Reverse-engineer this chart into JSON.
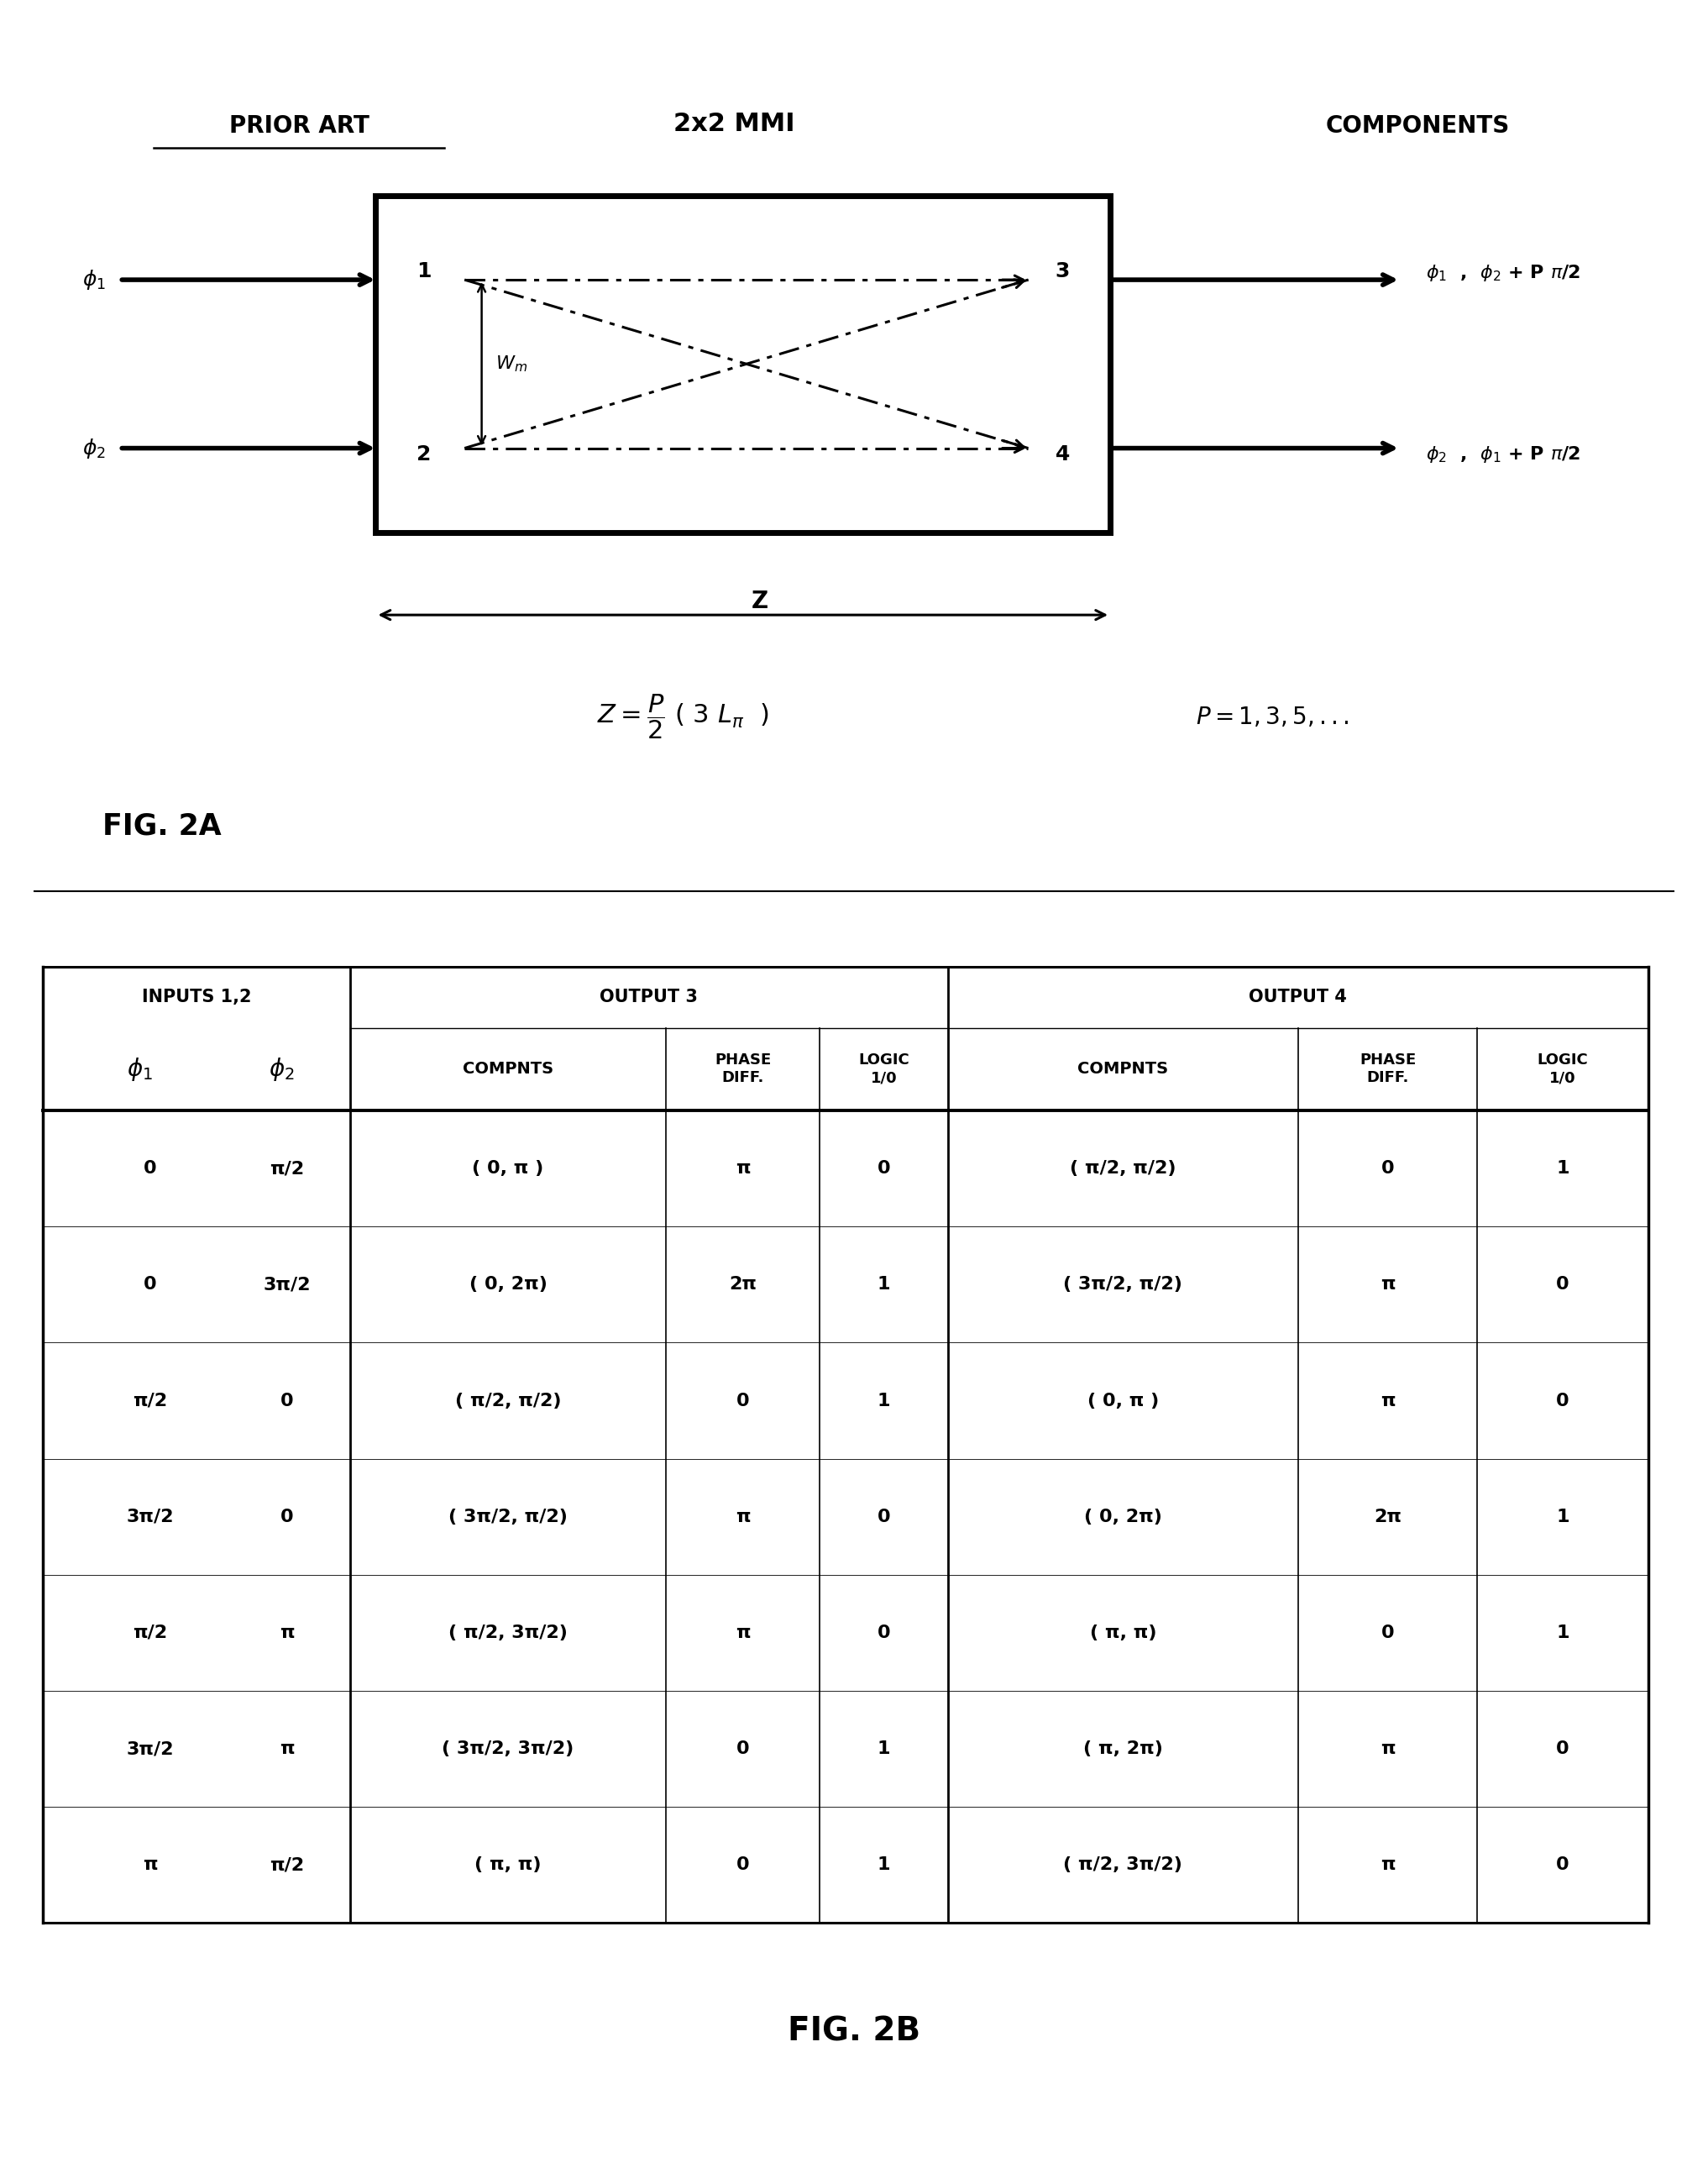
{
  "fig_width": 20.34,
  "fig_height": 25.87,
  "bg_color": "#ffffff",
  "prior_art_text": "PRIOR ART",
  "components_text": "COMPONENTS",
  "mmi_title": "2x2 MMI",
  "fig2a_label": "FIG. 2A",
  "fig2b_label": "FIG. 2B",
  "table_rows": [
    [
      "0",
      "π/2",
      "( 0, π )",
      "π",
      "0",
      "( π/2, π/2)",
      "0",
      "1"
    ],
    [
      "0",
      "3π/2",
      "( 0, 2π)",
      "2π",
      "1",
      "( 3π/2, π/2)",
      "π",
      "0"
    ],
    [
      "π/2",
      "0",
      "( π/2, π/2)",
      "0",
      "1",
      "( 0, π )",
      "π",
      "0"
    ],
    [
      "3π/2",
      "0",
      "( 3π/2, π/2)",
      "π",
      "0",
      "( 0, 2π)",
      "2π",
      "1"
    ],
    [
      "π/2",
      "π",
      "( π/2, 3π/2)",
      "π",
      "0",
      "( π, π)",
      "0",
      "1"
    ],
    [
      "3π/2",
      "π",
      "( 3π/2, 3π/2)",
      "0",
      "1",
      "( π, 2π)",
      "π",
      "0"
    ],
    [
      "π",
      "π/2",
      "( π, π)",
      "0",
      "1",
      "( π/2, 3π/2)",
      "π",
      "0"
    ]
  ]
}
